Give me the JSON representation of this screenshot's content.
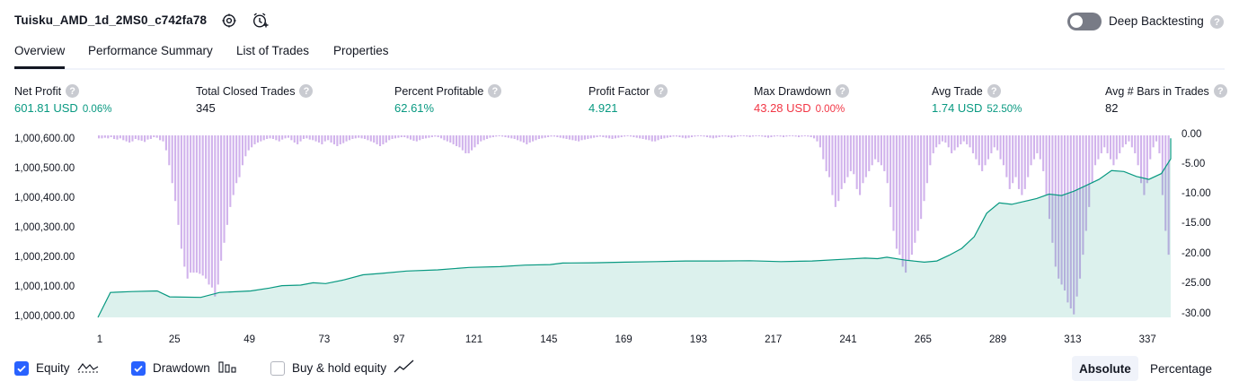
{
  "header": {
    "strategy_name": "Tuisku_AMD_1d_2MS0_c742fa78",
    "deep_backtesting_label": "Deep Backtesting",
    "deep_backtesting_on": false,
    "help_glyph": "?"
  },
  "tabs": [
    "Overview",
    "Performance Summary",
    "List of Trades",
    "Properties"
  ],
  "metrics": [
    {
      "label": "Net Profit",
      "value": "601.81 USD",
      "pct": "0.06%",
      "color": "#089981"
    },
    {
      "label": "Total Closed Trades",
      "value": "345",
      "pct": "",
      "color": "#131722"
    },
    {
      "label": "Percent Profitable",
      "value": "62.61%",
      "pct": "",
      "color": "#089981"
    },
    {
      "label": "Profit Factor",
      "value": "4.921",
      "pct": "",
      "color": "#089981"
    },
    {
      "label": "Max Drawdown",
      "value": "43.28 USD",
      "pct": "0.00%",
      "color": "#f23645"
    },
    {
      "label": "Avg Trade",
      "value": "1.74 USD",
      "pct": "52.50%",
      "color": "#089981"
    },
    {
      "label": "Avg # Bars in Trades",
      "value": "82",
      "pct": "",
      "color": "#131722"
    }
  ],
  "chart_data": {
    "type": "area",
    "x_ticks": [
      "1",
      "25",
      "49",
      "73",
      "97",
      "121",
      "145",
      "169",
      "193",
      "217",
      "241",
      "265",
      "289",
      "313",
      "337"
    ],
    "y_left_ticks": [
      "1,000,600.00",
      "1,000,500.00",
      "1,000,400.00",
      "1,000,300.00",
      "1,000,200.00",
      "1,000,100.00",
      "1,000,000.00"
    ],
    "y_right_ticks": [
      "0.00",
      "-5.00",
      "-10.00",
      "-15.00",
      "-20.00",
      "-25.00",
      "-30.00"
    ],
    "ylim_left": [
      1000000,
      1000620
    ],
    "ylim_right": [
      -30.5,
      0
    ],
    "xlim": [
      1,
      345
    ],
    "series": [
      {
        "name": "Equity",
        "color": "#089981",
        "points": [
          [
            1,
            1000000
          ],
          [
            5,
            1000085
          ],
          [
            12,
            1000088
          ],
          [
            20,
            1000090
          ],
          [
            24,
            1000070
          ],
          [
            34,
            1000068
          ],
          [
            40,
            1000085
          ],
          [
            50,
            1000090
          ],
          [
            56,
            1000100
          ],
          [
            60,
            1000108
          ],
          [
            66,
            1000110
          ],
          [
            70,
            1000118
          ],
          [
            74,
            1000115
          ],
          [
            80,
            1000128
          ],
          [
            86,
            1000145
          ],
          [
            92,
            1000150
          ],
          [
            100,
            1000158
          ],
          [
            110,
            1000162
          ],
          [
            120,
            1000170
          ],
          [
            130,
            1000173
          ],
          [
            138,
            1000178
          ],
          [
            146,
            1000180
          ],
          [
            150,
            1000185
          ],
          [
            160,
            1000186
          ],
          [
            170,
            1000188
          ],
          [
            180,
            1000190
          ],
          [
            190,
            1000192
          ],
          [
            200,
            1000192
          ],
          [
            210,
            1000193
          ],
          [
            220,
            1000190
          ],
          [
            230,
            1000192
          ],
          [
            240,
            1000198
          ],
          [
            247,
            1000202
          ],
          [
            251,
            1000200
          ],
          [
            254,
            1000205
          ],
          [
            260,
            1000195
          ],
          [
            266,
            1000188
          ],
          [
            270,
            1000192
          ],
          [
            274,
            1000212
          ],
          [
            278,
            1000235
          ],
          [
            282,
            1000275
          ],
          [
            286,
            1000355
          ],
          [
            290,
            1000390
          ],
          [
            294,
            1000385
          ],
          [
            298,
            1000395
          ],
          [
            302,
            1000405
          ],
          [
            306,
            1000420
          ],
          [
            310,
            1000415
          ],
          [
            314,
            1000430
          ],
          [
            318,
            1000450
          ],
          [
            322,
            1000470
          ],
          [
            326,
            1000500
          ],
          [
            330,
            1000497
          ],
          [
            334,
            1000480
          ],
          [
            338,
            1000470
          ],
          [
            342,
            1000490
          ],
          [
            346,
            1000540
          ],
          [
            350,
            1000570
          ],
          [
            354,
            1000600
          ],
          [
            358,
            1000610
          ],
          [
            362,
            1000604
          ]
        ]
      },
      {
        "name": "Drawdown",
        "color": "#d1b3ec",
        "values": [
          -0.5,
          -0.5,
          -0.4,
          -0.5,
          -0.3,
          -0.6,
          -0.7,
          -0.5,
          -0.8,
          -1.0,
          -1.2,
          -1.0,
          -0.6,
          -0.8,
          -0.9,
          -1.1,
          -0.7,
          -0.6,
          -0.3,
          -0.4,
          -0.8,
          -1.0,
          -2.5,
          -5.0,
          -8.0,
          -11.0,
          -15.0,
          -19.0,
          -22.0,
          -24.0,
          -23.0,
          -23.0,
          -23.0,
          -23.2,
          -23.5,
          -24.0,
          -25.0,
          -25.5,
          -27.0,
          -25.0,
          -21.0,
          -18.0,
          -15.0,
          -12.0,
          -10.0,
          -8.0,
          -7.0,
          -5.0,
          -3.5,
          -2.5,
          -2.0,
          -1.5,
          -1.2,
          -1.0,
          -0.8,
          -0.6,
          -0.5,
          -0.6,
          -0.8,
          -1.0,
          -0.7,
          -0.5,
          -0.4,
          -0.8,
          -1.2,
          -1.5,
          -1.0,
          -0.6,
          -0.5,
          -0.7,
          -0.8,
          -1.0,
          -1.2,
          -1.5,
          -1.0,
          -0.8,
          -1.2,
          -1.5,
          -1.8,
          -1.5,
          -1.3,
          -1.0,
          -0.8,
          -0.6,
          -0.5,
          -0.4,
          -0.5,
          -0.6,
          -0.8,
          -1.0,
          -1.2,
          -1.5,
          -1.8,
          -1.5,
          -1.2,
          -0.8,
          -0.6,
          -0.5,
          -0.4,
          -0.3,
          -0.3,
          -0.5,
          -0.7,
          -0.9,
          -1.0,
          -0.8,
          -0.6,
          -0.5,
          -0.4,
          -0.3,
          -0.2,
          -0.3,
          -0.5,
          -0.8,
          -1.0,
          -1.2,
          -1.5,
          -1.8,
          -2.0,
          -2.5,
          -3.0,
          -3.0,
          -2.5,
          -2.0,
          -1.5,
          -1.0,
          -0.8,
          -0.6,
          -0.4,
          -0.3,
          -0.2,
          -0.1,
          -0.2,
          -0.3,
          -0.4,
          -0.5,
          -0.6,
          -0.8,
          -1.0,
          -1.2,
          -1.5,
          -1.2,
          -1.0,
          -0.8,
          -0.6,
          -0.5,
          -0.4,
          -0.3,
          -0.2,
          -0.2,
          -0.3,
          -0.4,
          -0.5,
          -0.6,
          -0.7,
          -0.8,
          -0.9,
          -1.0,
          -0.8,
          -0.7,
          -0.6,
          -0.5,
          -0.4,
          -0.3,
          -0.2,
          -0.3,
          -0.4,
          -0.5,
          -0.6,
          -0.5,
          -0.4,
          -0.3,
          -0.2,
          -0.1,
          -0.2,
          -0.3,
          -0.4,
          -0.5,
          -0.6,
          -0.7,
          -0.8,
          -1.0,
          -1.0,
          -0.8,
          -0.6,
          -0.5,
          -0.4,
          -0.3,
          -0.2,
          -0.2,
          -0.3,
          -0.4,
          -0.5,
          -0.4,
          -0.3,
          -0.2,
          -0.1,
          -0.1,
          -0.2,
          -0.3,
          -0.4,
          -0.5,
          -0.4,
          -0.3,
          -0.2,
          -0.2,
          -0.3,
          -0.4,
          -0.3,
          -0.2,
          -0.1,
          -0.1,
          -0.2,
          -0.3,
          -0.2,
          -0.1,
          -0.1,
          -0.2,
          -0.3,
          -0.4,
          -0.3,
          -0.2,
          -0.1,
          -0.2,
          -0.3,
          -0.2,
          -0.1,
          -0.1,
          -0.2,
          -0.3,
          -0.2,
          -0.1,
          -0.2,
          -0.3,
          -0.5,
          -1.0,
          -2.0,
          -4.0,
          -6.0,
          -7.0,
          -10.0,
          -12.0,
          -11.0,
          -9.0,
          -8.0,
          -7.0,
          -6.0,
          -6.5,
          -9.0,
          -10.0,
          -8.0,
          -7.0,
          -6.0,
          -5.0,
          -4.0,
          -4.5,
          -5.0,
          -6.0,
          -8.0,
          -12.0,
          -16.0,
          -19.0,
          -20.0,
          -22.0,
          -23.0,
          -21.0,
          -20.0,
          -18.0,
          -16.0,
          -14.0,
          -11.0,
          -8.0,
          -5.0,
          -3.0,
          -2.0,
          -1.5,
          -1.0,
          -1.2,
          -2.0,
          -3.0,
          -2.5,
          -2.0,
          -1.5,
          -1.0,
          -1.5,
          -2.0,
          -3.0,
          -4.0,
          -5.0,
          -6.0,
          -5.0,
          -4.0,
          -3.0,
          -2.0,
          -2.5,
          -4.0,
          -5.0,
          -7.0,
          -9.0,
          -8.0,
          -7.0,
          -9.0,
          -10.0,
          -9.0,
          -7.0,
          -5.0,
          -4.0,
          -3.0,
          -4.0,
          -6.0,
          -10.0,
          -14.0,
          -18.0,
          -22.0,
          -24.0,
          -25.0,
          -26.0,
          -28.0,
          -29.0,
          -30.0,
          -27.0,
          -24.0,
          -20.0,
          -16.0,
          -12.0,
          -8.0,
          -5.0,
          -4.0,
          -3.0,
          -2.0,
          -3.0,
          -4.0,
          -5.0,
          -4.0,
          -3.0,
          -2.0,
          -1.5,
          -1.0,
          -2.0,
          -3.0,
          -5.0,
          -8.0,
          -10.0,
          -8.0,
          -4.0,
          -2.0,
          -1.0,
          -3.0,
          -10.0,
          -16.0,
          -20.0
        ]
      },
      {
        "name": "Buy & hold equity",
        "color": "#131722",
        "points": []
      }
    ]
  },
  "legend": [
    {
      "label": "Equity",
      "checked": true,
      "icon": "equity-line-icon"
    },
    {
      "label": "Drawdown",
      "checked": true,
      "icon": "drawdown-bars-icon"
    },
    {
      "label": "Buy & hold equity",
      "checked": false,
      "icon": "buy-hold-line-icon"
    }
  ],
  "scale_toggle": {
    "options": [
      "Absolute",
      "Percentage"
    ],
    "selected": "Absolute"
  }
}
